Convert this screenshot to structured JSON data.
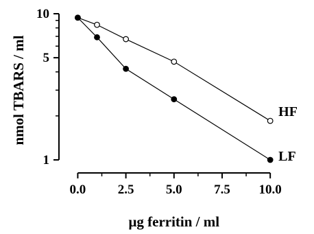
{
  "chart_data": {
    "type": "line",
    "xlabel": "μg ferritin / ml",
    "ylabel": "nmol TBARS / ml",
    "xlim": [
      -0.3,
      10.6
    ],
    "ylim": [
      1,
      10
    ],
    "y_scale": "log",
    "x_ticks": [
      0.0,
      2.5,
      5.0,
      7.5,
      10.0
    ],
    "x_tick_labels": [
      "0.0",
      "2.5",
      "5.0",
      "7.5",
      "10.0"
    ],
    "y_ticks": [
      1,
      5,
      10
    ],
    "y_tick_labels": [
      "1",
      "5",
      "10"
    ],
    "x_minor_ticks": [
      1.25,
      3.75,
      6.25,
      8.75
    ],
    "y_minor_ticks": [
      2,
      3,
      4,
      6,
      7,
      8,
      9
    ],
    "grid": false,
    "series": [
      {
        "name": "HF",
        "marker": "open-circle",
        "x": [
          0,
          1,
          2.5,
          5,
          10
        ],
        "y": [
          9.4,
          8.4,
          6.7,
          4.7,
          1.85
        ]
      },
      {
        "name": "LF",
        "marker": "filled-circle",
        "x": [
          0,
          1,
          2.5,
          5,
          10
        ],
        "y": [
          9.4,
          6.9,
          4.2,
          2.6,
          1.0
        ]
      }
    ]
  }
}
